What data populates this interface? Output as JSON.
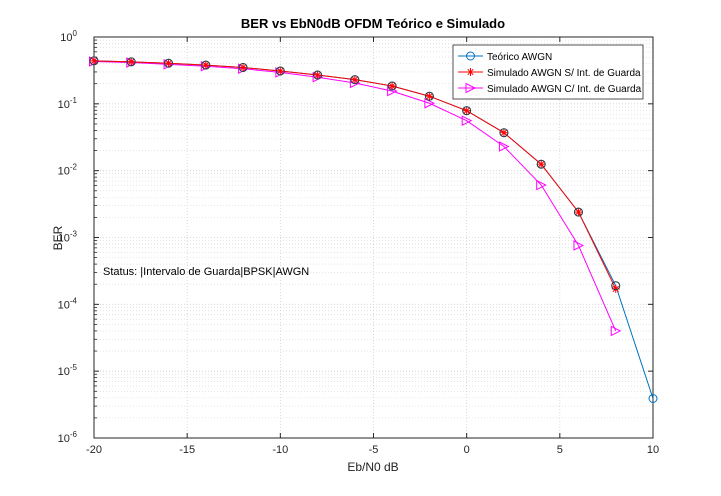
{
  "chart_data": {
    "type": "line",
    "title": "BER vs EbN0dB OFDM Teórico e Simulado",
    "xlabel": "Eb/N0 dB",
    "ylabel": "BER",
    "xlim": [
      -20,
      10
    ],
    "ylim": [
      1e-06,
      1
    ],
    "yscale": "log",
    "grid": true,
    "minor_grid": true,
    "legend_position": "top-right",
    "x_ticks": [
      -20,
      -15,
      -10,
      -5,
      0,
      5,
      10
    ],
    "x_tick_labels": [
      "-20",
      "-15",
      "-10",
      "-5",
      "0",
      "5",
      "10"
    ],
    "y_ticks": [
      {
        "value": 1,
        "base": "10",
        "exp": "0"
      },
      {
        "value": 0.1,
        "base": "10",
        "exp": "-1"
      },
      {
        "value": 0.01,
        "base": "10",
        "exp": "-2"
      },
      {
        "value": 0.001,
        "base": "10",
        "exp": "-3"
      },
      {
        "value": 0.0001,
        "base": "10",
        "exp": "-4"
      },
      {
        "value": 1e-05,
        "base": "10",
        "exp": "-5"
      },
      {
        "value": 1e-06,
        "base": "10",
        "exp": "-6"
      }
    ],
    "annotation": "Status: |Intervalo de Guarda|BPSK|AWGN",
    "series": [
      {
        "name": "Teórico AWGN",
        "color": "#0072BD",
        "marker": "circle",
        "x": [
          -20,
          -18,
          -16,
          -14,
          -12,
          -10,
          -8,
          -6,
          -4,
          -2,
          0,
          2,
          4,
          6,
          8,
          10
        ],
        "y": [
          0.44,
          0.425,
          0.405,
          0.38,
          0.35,
          0.31,
          0.27,
          0.23,
          0.185,
          0.13,
          0.079,
          0.037,
          0.0125,
          0.0024,
          0.00019,
          3.9e-06
        ]
      },
      {
        "name": "Simulado AWGN S/ Int. de Guarda",
        "color": "#FF0000",
        "marker": "asterisk",
        "x": [
          -20,
          -18,
          -16,
          -14,
          -12,
          -10,
          -8,
          -6,
          -4,
          -2,
          0,
          2,
          4,
          6,
          8
        ],
        "y": [
          0.44,
          0.425,
          0.405,
          0.38,
          0.35,
          0.31,
          0.27,
          0.23,
          0.185,
          0.13,
          0.079,
          0.037,
          0.0125,
          0.0024,
          0.00017
        ]
      },
      {
        "name": "Simulado AWGN C/ Int. de Guarda",
        "color": "#FF00FF",
        "marker": "triangle-right",
        "x": [
          -20,
          -18,
          -16,
          -14,
          -12,
          -10,
          -8,
          -6,
          -4,
          -2,
          0,
          2,
          4,
          6,
          8
        ],
        "y": [
          0.43,
          0.415,
          0.39,
          0.365,
          0.335,
          0.295,
          0.25,
          0.205,
          0.155,
          0.102,
          0.056,
          0.023,
          0.0061,
          0.00076,
          4e-05
        ]
      }
    ]
  }
}
